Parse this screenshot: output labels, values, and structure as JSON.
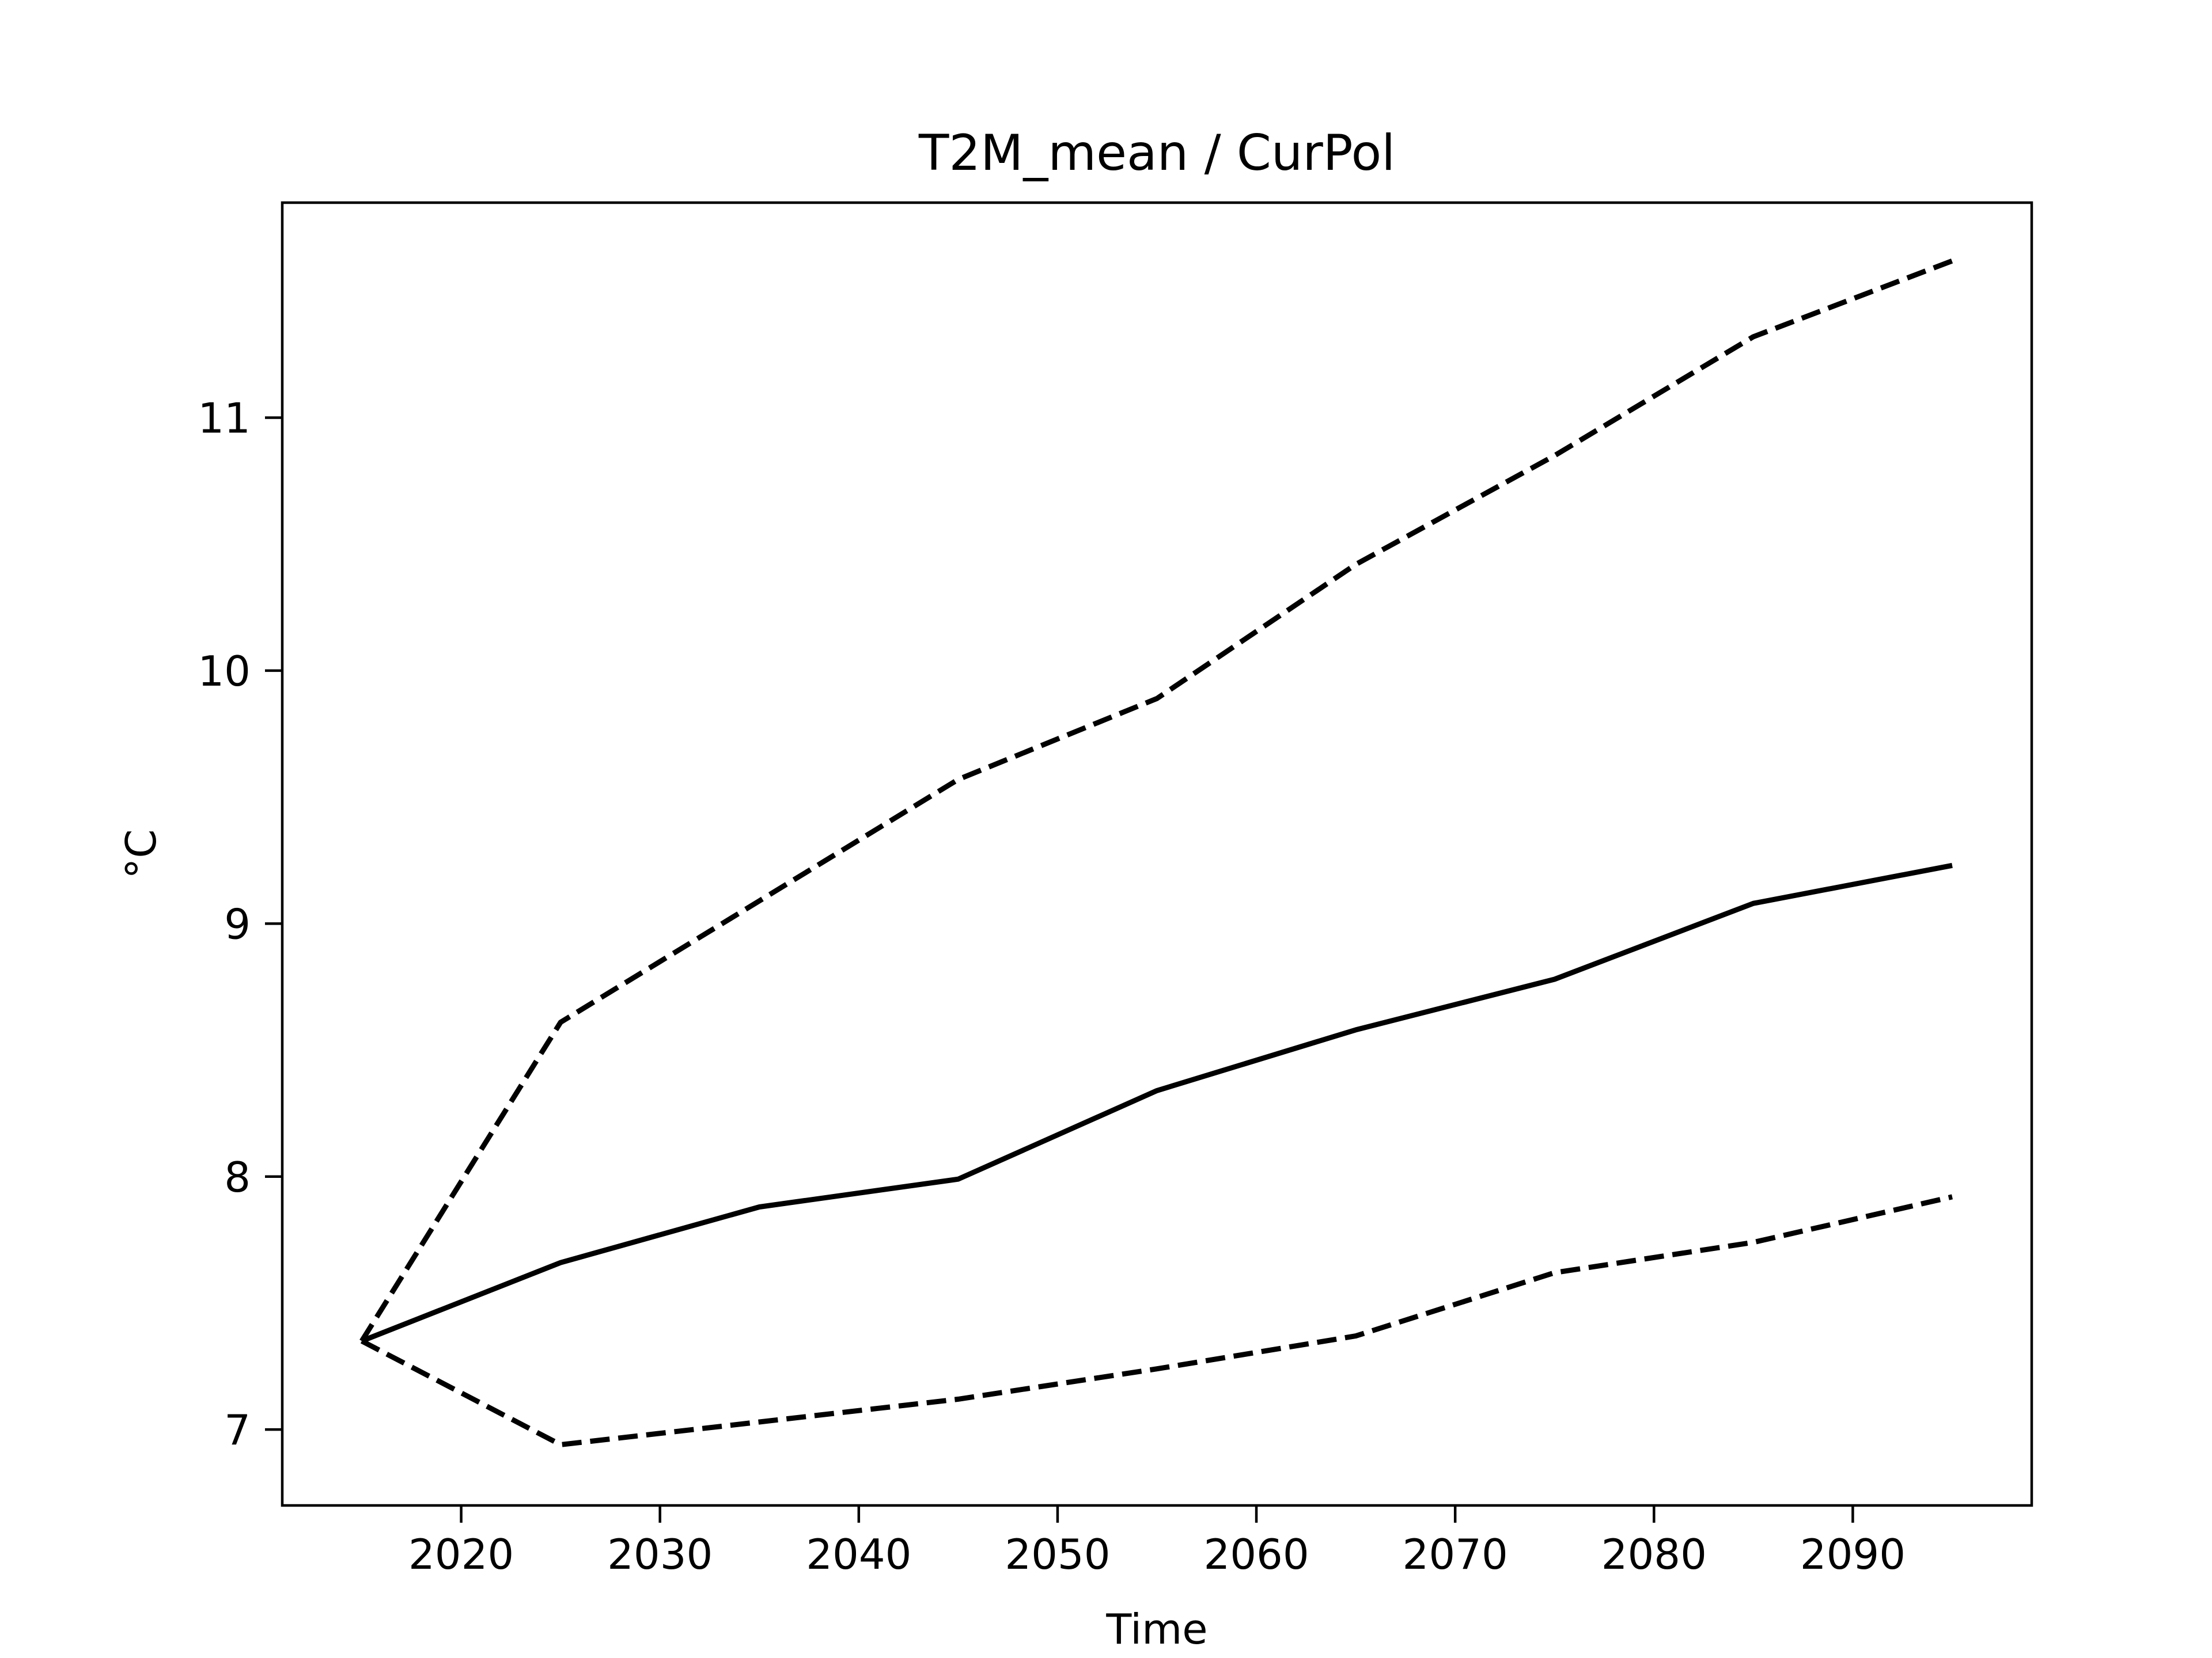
{
  "chart_data": {
    "type": "line",
    "title": "T2M_mean / CurPol",
    "xlabel": "Time",
    "ylabel": "°C",
    "xlim": [
      2011,
      2099
    ],
    "ylim": [
      6.7,
      11.85
    ],
    "xticks": [
      2020,
      2030,
      2040,
      2050,
      2060,
      2070,
      2080,
      2090
    ],
    "xtick_labels": [
      "2020",
      "2030",
      "2040",
      "2050",
      "2060",
      "2070",
      "2080",
      "2090"
    ],
    "yticks": [
      7,
      8,
      9,
      10,
      11
    ],
    "ytick_labels": [
      "7",
      "8",
      "9",
      "10",
      "11"
    ],
    "grid": false,
    "legend": "none",
    "x": [
      2015,
      2025,
      2035,
      2045,
      2055,
      2065,
      2075,
      2085,
      2095
    ],
    "series": [
      {
        "style": "dashed",
        "color": "#000000",
        "values": [
          7.35,
          8.61,
          9.09,
          9.57,
          9.89,
          10.42,
          10.85,
          11.32,
          11.62
        ]
      },
      {
        "style": "solid",
        "color": "#000000",
        "values": [
          7.35,
          7.66,
          7.88,
          7.99,
          8.34,
          8.58,
          8.78,
          9.08,
          9.23
        ]
      },
      {
        "style": "dashed",
        "color": "#000000",
        "values": [
          7.35,
          6.94,
          7.03,
          7.12,
          7.24,
          7.37,
          7.62,
          7.74,
          7.92
        ]
      }
    ]
  }
}
